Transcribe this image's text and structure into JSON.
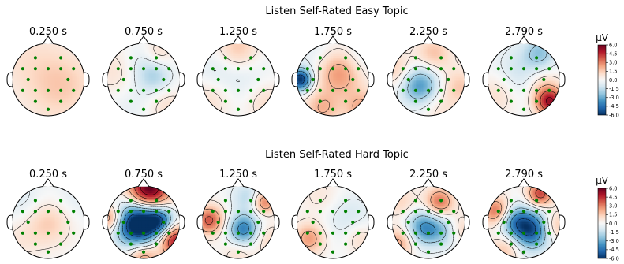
{
  "colorbar": {
    "unit": "µV",
    "ticks": [
      "6.0",
      "4.5",
      "3.0",
      "1.5",
      "0.0",
      "-1.5",
      "-3.0",
      "-4.5",
      "-6.0"
    ],
    "range": [
      -6.0,
      6.0
    ],
    "colormap": "RdBu_r",
    "colors": [
      "#053061",
      "#2166ac",
      "#4393c3",
      "#92c5de",
      "#d1e5f0",
      "#f7f7f7",
      "#fddbc7",
      "#f4a582",
      "#d6604d",
      "#b2182b",
      "#67001f"
    ]
  },
  "sensor_color": "#008000",
  "panels": [
    {
      "title": "Listen Self-Rated Easy Topic",
      "maps": [
        {
          "time": "0.250 s",
          "sources": [
            [
              0.15,
              0.1,
              0.5,
              0.6
            ],
            [
              -0.6,
              0.5,
              0.8,
              0.8
            ],
            [
              0.75,
              -0.1,
              0.7,
              0.6
            ],
            [
              0.2,
              -0.7,
              0.6,
              0.6
            ]
          ]
        },
        {
          "time": "0.750 s",
          "sources": [
            [
              0.3,
              0.1,
              -1.8,
              0.35
            ],
            [
              -0.1,
              0.5,
              -0.8,
              0.4
            ],
            [
              -0.7,
              0.2,
              1.0,
              0.5
            ],
            [
              0.4,
              0.7,
              1.2,
              0.3
            ],
            [
              0.6,
              -0.7,
              1.0,
              0.4
            ],
            [
              -0.3,
              -0.6,
              -0.6,
              0.5
            ]
          ]
        },
        {
          "time": "1.250 s",
          "sources": [
            [
              0.0,
              0.85,
              1.8,
              0.4
            ],
            [
              0.1,
              0.0,
              -0.8,
              0.6
            ],
            [
              -0.75,
              -0.5,
              1.1,
              0.45
            ],
            [
              0.75,
              -0.6,
              1.2,
              0.4
            ],
            [
              -0.7,
              0.2,
              -0.6,
              0.4
            ]
          ]
        },
        {
          "time": "1.750 s",
          "sources": [
            [
              -0.9,
              0.0,
              -6.0,
              0.22
            ],
            [
              0.2,
              0.2,
              2.8,
              0.45
            ],
            [
              -0.3,
              -0.8,
              2.0,
              0.35
            ],
            [
              0.8,
              -0.8,
              2.2,
              0.35
            ],
            [
              0.7,
              0.6,
              -0.9,
              0.4
            ],
            [
              -0.5,
              0.7,
              -0.7,
              0.4
            ]
          ]
        },
        {
          "time": "2.250 s",
          "sources": [
            [
              -0.25,
              -0.15,
              -3.6,
              0.38
            ],
            [
              0.15,
              0.7,
              1.8,
              0.35
            ],
            [
              0.85,
              -0.2,
              1.6,
              0.35
            ],
            [
              -0.85,
              0.25,
              1.6,
              0.35
            ],
            [
              0.3,
              -0.8,
              0.8,
              0.35
            ]
          ]
        },
        {
          "time": "2.790 s",
          "sources": [
            [
              0.72,
              -0.62,
              5.0,
              0.28
            ],
            [
              0.5,
              -0.15,
              1.6,
              0.35
            ],
            [
              0.0,
              0.15,
              -1.4,
              0.55
            ],
            [
              0.45,
              0.75,
              -2.0,
              0.3
            ],
            [
              -0.7,
              -0.4,
              1.2,
              0.4
            ]
          ]
        }
      ]
    },
    {
      "title": "Listen Self-Rated Hard Topic",
      "maps": [
        {
          "time": "0.250 s",
          "sources": [
            [
              0.0,
              0.0,
              1.6,
              0.45
            ],
            [
              -0.7,
              0.6,
              -0.8,
              0.45
            ],
            [
              0.7,
              0.6,
              -0.6,
              0.45
            ],
            [
              -0.8,
              -0.5,
              0.6,
              0.4
            ]
          ]
        },
        {
          "time": "0.750 s",
          "sources": [
            [
              -0.15,
              -0.05,
              -7.5,
              0.42
            ],
            [
              0.45,
              0.05,
              -4.0,
              0.28
            ],
            [
              0.15,
              0.9,
              6.5,
              0.4
            ],
            [
              -0.92,
              0.1,
              3.2,
              0.25
            ],
            [
              0.85,
              -0.5,
              5.0,
              0.3
            ],
            [
              0.0,
              -0.95,
              2.8,
              0.3
            ]
          ]
        },
        {
          "time": "1.250 s",
          "sources": [
            [
              0.15,
              -0.2,
              -4.2,
              0.3
            ],
            [
              -0.8,
              0.05,
              3.8,
              0.28
            ],
            [
              0.72,
              0.55,
              3.2,
              0.22
            ],
            [
              0.25,
              0.7,
              -1.6,
              0.3
            ],
            [
              0.0,
              -0.85,
              1.0,
              0.3
            ],
            [
              0.8,
              -0.45,
              1.2,
              0.3
            ]
          ]
        },
        {
          "time": "1.750 s",
          "sources": [
            [
              -0.65,
              -0.45,
              2.6,
              0.3
            ],
            [
              0.4,
              0.15,
              -1.0,
              0.5
            ],
            [
              0.75,
              -0.45,
              1.2,
              0.3
            ],
            [
              -0.3,
              0.7,
              0.8,
              0.4
            ]
          ]
        },
        {
          "time": "2.250 s",
          "sources": [
            [
              -0.1,
              -0.15,
              -3.8,
              0.35
            ],
            [
              0.5,
              -0.25,
              -1.8,
              0.3
            ],
            [
              0.3,
              0.55,
              3.4,
              0.28
            ],
            [
              -0.8,
              -0.55,
              2.4,
              0.3
            ],
            [
              0.85,
              -0.2,
              1.6,
              0.28
            ],
            [
              -0.75,
              0.55,
              1.3,
              0.3
            ]
          ]
        },
        {
          "time": "2.790 s",
          "sources": [
            [
              0.2,
              -0.2,
              -5.4,
              0.38
            ],
            [
              -0.3,
              0.05,
              -2.8,
              0.3
            ],
            [
              0.45,
              0.78,
              4.2,
              0.25
            ],
            [
              -0.75,
              0.3,
              3.6,
              0.28
            ],
            [
              0.85,
              -0.1,
              2.2,
              0.28
            ],
            [
              -0.5,
              -0.75,
              1.8,
              0.3
            ]
          ]
        }
      ]
    }
  ]
}
